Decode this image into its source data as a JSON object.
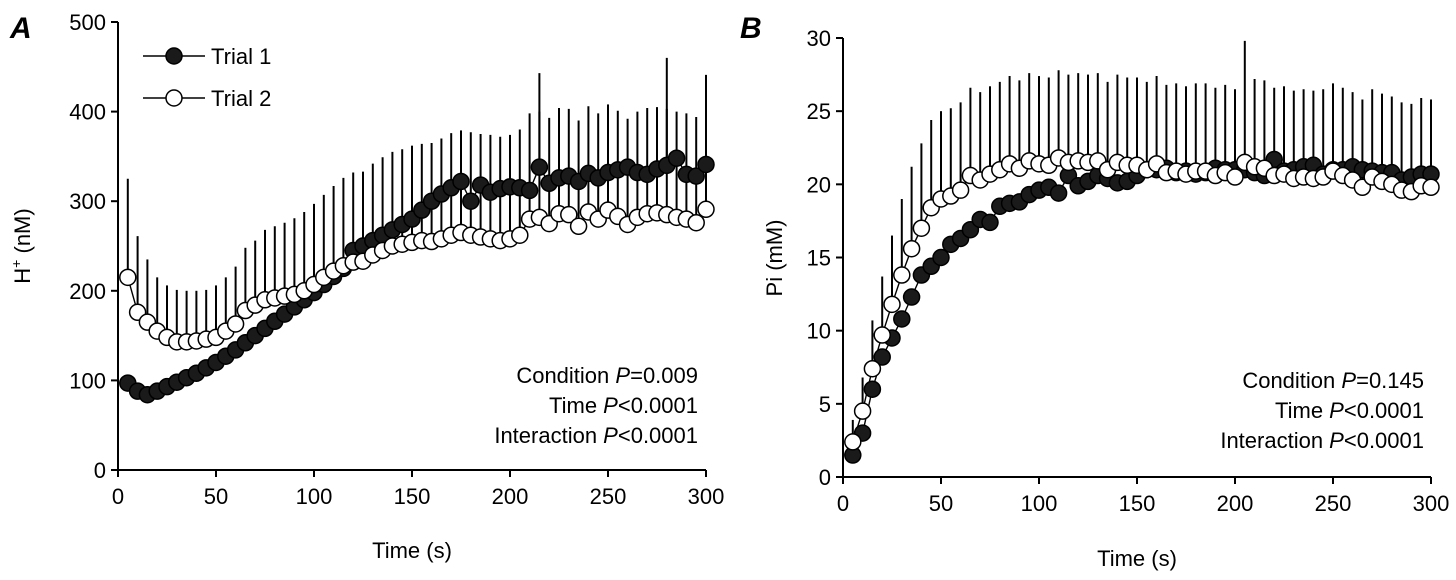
{
  "chart_data": [
    {
      "type": "scatter",
      "panel": "A",
      "xlabel": "Time (s)",
      "ylabel_main": "H",
      "ylabel_sup": "+",
      "ylabel_tail": " (nM)",
      "xlim": [
        0,
        300
      ],
      "ylim": [
        0,
        500
      ],
      "xticks": [
        "0",
        "50",
        "100",
        "150",
        "200",
        "250",
        "300"
      ],
      "yticks": [
        "0",
        "100",
        "200",
        "300",
        "400",
        "500"
      ],
      "legend": {
        "placement": "top-left",
        "entries": [
          "Trial 1",
          "Trial 2"
        ]
      },
      "stats": [
        {
          "label": "Condition ",
          "p": "P",
          "value": "=0.009"
        },
        {
          "label": "Time ",
          "p": "P",
          "value": "<0.0001"
        },
        {
          "label": "Interaction ",
          "p": "P",
          "value": "<0.0001"
        }
      ],
      "x": [
        5,
        10,
        15,
        20,
        25,
        30,
        35,
        40,
        45,
        50,
        55,
        60,
        65,
        70,
        75,
        80,
        85,
        90,
        95,
        100,
        105,
        110,
        115,
        120,
        125,
        130,
        135,
        140,
        145,
        150,
        155,
        160,
        165,
        170,
        175,
        180,
        185,
        190,
        195,
        200,
        205,
        210,
        215,
        220,
        225,
        230,
        235,
        240,
        245,
        250,
        255,
        260,
        265,
        270,
        275,
        280,
        285,
        290,
        295,
        300
      ],
      "series": [
        {
          "name": "Trial 1",
          "fill": "#1a1a1a",
          "values": [
            97,
            88,
            84,
            88,
            93,
            98,
            103,
            108,
            114,
            120,
            127,
            134,
            142,
            150,
            158,
            166,
            174,
            182,
            190,
            198,
            207,
            216,
            225,
            245,
            250,
            256,
            262,
            268,
            274,
            280,
            290,
            300,
            308,
            315,
            322,
            300,
            318,
            310,
            314,
            316,
            315,
            312,
            338,
            320,
            326,
            328,
            322,
            331,
            326,
            332,
            335,
            338,
            332,
            330,
            336,
            340,
            348,
            330,
            328,
            341
          ],
          "err": [
            0,
            0,
            0,
            0,
            0,
            0,
            0,
            0,
            0,
            0,
            0,
            0,
            0,
            0,
            0,
            0,
            0,
            0,
            0,
            0,
            0,
            0,
            0,
            0,
            0,
            0,
            0,
            0,
            0,
            0,
            0,
            0,
            0,
            0,
            0,
            0,
            0,
            0,
            0,
            0,
            0,
            0,
            105,
            0,
            0,
            0,
            0,
            0,
            0,
            0,
            0,
            0,
            0,
            0,
            0,
            120,
            0,
            0,
            0,
            100
          ]
        },
        {
          "name": "Trial 2",
          "fill": "#ffffff",
          "values": [
            215,
            176,
            165,
            155,
            148,
            143,
            143,
            144,
            146,
            148,
            155,
            163,
            178,
            184,
            190,
            192,
            194,
            196,
            200,
            207,
            215,
            222,
            228,
            232,
            233,
            240,
            245,
            250,
            252,
            254,
            256,
            255,
            258,
            262,
            265,
            262,
            260,
            258,
            256,
            258,
            262,
            280,
            282,
            275,
            286,
            285,
            272,
            288,
            280,
            290,
            283,
            274,
            282,
            286,
            287,
            285,
            282,
            280,
            276,
            291
          ],
          "err": [
            110,
            85,
            70,
            60,
            58,
            58,
            57,
            56,
            55,
            58,
            60,
            64,
            70,
            72,
            78,
            80,
            82,
            85,
            88,
            90,
            92,
            95,
            98,
            100,
            100,
            102,
            104,
            105,
            106,
            108,
            108,
            110,
            112,
            114,
            114,
            115,
            115,
            116,
            116,
            116,
            118,
            118,
            118,
            118,
            118,
            118,
            118,
            118,
            118,
            118,
            118,
            118,
            118,
            118,
            118,
            118,
            118,
            118,
            118,
            118
          ]
        }
      ]
    },
    {
      "type": "scatter",
      "panel": "B",
      "xlabel": "Time (s)",
      "ylabel": "Pi (mM)",
      "xlim": [
        0,
        300
      ],
      "ylim": [
        0,
        30
      ],
      "xticks": [
        "0",
        "50",
        "100",
        "150",
        "200",
        "250",
        "300"
      ],
      "yticks": [
        "0",
        "5",
        "10",
        "15",
        "20",
        "25",
        "30"
      ],
      "stats": [
        {
          "label": "Condition ",
          "p": "P",
          "value": "=0.145"
        },
        {
          "label": "Time ",
          "p": "P",
          "value": "<0.0001"
        },
        {
          "label": "Interaction ",
          "p": "P",
          "value": "<0.0001"
        }
      ],
      "x": [
        5,
        10,
        15,
        20,
        25,
        30,
        35,
        40,
        45,
        50,
        55,
        60,
        65,
        70,
        75,
        80,
        85,
        90,
        95,
        100,
        105,
        110,
        115,
        120,
        125,
        130,
        135,
        140,
        145,
        150,
        155,
        160,
        165,
        170,
        175,
        180,
        185,
        190,
        195,
        200,
        205,
        210,
        215,
        220,
        225,
        230,
        235,
        240,
        245,
        250,
        255,
        260,
        265,
        270,
        275,
        280,
        285,
        290,
        295,
        300
      ],
      "series": [
        {
          "name": "Trial 1",
          "fill": "#1a1a1a",
          "values": [
            1.5,
            3.0,
            6.0,
            8.2,
            9.5,
            10.8,
            12.3,
            13.8,
            14.4,
            15.0,
            15.9,
            16.3,
            16.9,
            17.6,
            17.4,
            18.5,
            18.7,
            18.8,
            19.3,
            19.6,
            19.8,
            19.4,
            20.6,
            19.9,
            20.2,
            20.6,
            20.4,
            20.1,
            20.2,
            20.6,
            21.0,
            21.0,
            21.1,
            20.8,
            20.9,
            20.7,
            20.8,
            21.1,
            21.0,
            21.0,
            21.0,
            20.8,
            20.6,
            21.7,
            20.9,
            21.0,
            21.2,
            21.3,
            20.7,
            21.0,
            21.0,
            21.2,
            21.0,
            20.9,
            20.8,
            20.8,
            20.3,
            20.5,
            20.7,
            20.7
          ],
          "err": [
            0,
            0,
            0,
            0,
            0,
            0,
            0,
            0,
            0,
            0,
            0,
            0,
            0,
            0,
            0,
            0,
            0,
            0,
            0,
            0,
            0,
            0,
            0,
            0,
            0,
            0,
            0,
            0,
            0,
            0,
            0,
            0,
            0,
            0,
            0,
            0,
            0,
            0,
            0,
            0,
            0,
            0,
            0,
            0,
            0,
            0,
            0,
            0,
            0,
            0,
            0,
            0,
            0,
            0,
            0,
            0,
            0,
            0,
            0,
            0
          ]
        },
        {
          "name": "Trial 2",
          "fill": "#ffffff",
          "values": [
            2.4,
            4.5,
            7.4,
            9.7,
            11.8,
            13.8,
            15.6,
            17.0,
            18.4,
            19.0,
            19.2,
            19.6,
            20.6,
            20.3,
            20.7,
            21.0,
            21.4,
            21.1,
            21.6,
            21.4,
            21.3,
            21.8,
            21.5,
            21.6,
            21.5,
            21.6,
            21.0,
            21.5,
            21.3,
            21.3,
            21.0,
            21.4,
            20.8,
            20.9,
            20.7,
            20.9,
            20.9,
            20.6,
            20.8,
            20.5,
            21.5,
            21.2,
            21.1,
            20.6,
            20.7,
            20.4,
            20.5,
            20.4,
            20.5,
            20.9,
            20.6,
            20.3,
            19.8,
            20.5,
            20.2,
            20.0,
            19.6,
            19.5,
            19.9,
            19.8
          ],
          "err": [
            1.5,
            2.3,
            3.3,
            4.0,
            4.7,
            5.2,
            5.6,
            5.8,
            6.0,
            6.0,
            6.0,
            6.0,
            6.0,
            6.0,
            6.0,
            6.0,
            6.0,
            6.0,
            6.0,
            6.0,
            6.0,
            6.0,
            6.0,
            6.0,
            6.0,
            6.0,
            6.0,
            6.0,
            6.0,
            6.0,
            6.0,
            6.0,
            6.0,
            6.0,
            6.0,
            6.0,
            6.0,
            6.0,
            6.0,
            6.0,
            8.3,
            6.0,
            6.0,
            6.0,
            6.0,
            6.0,
            6.0,
            6.0,
            6.0,
            6.0,
            6.0,
            6.0,
            6.0,
            6.0,
            6.0,
            6.0,
            6.0,
            6.0,
            6.0,
            6.0
          ]
        }
      ]
    }
  ]
}
